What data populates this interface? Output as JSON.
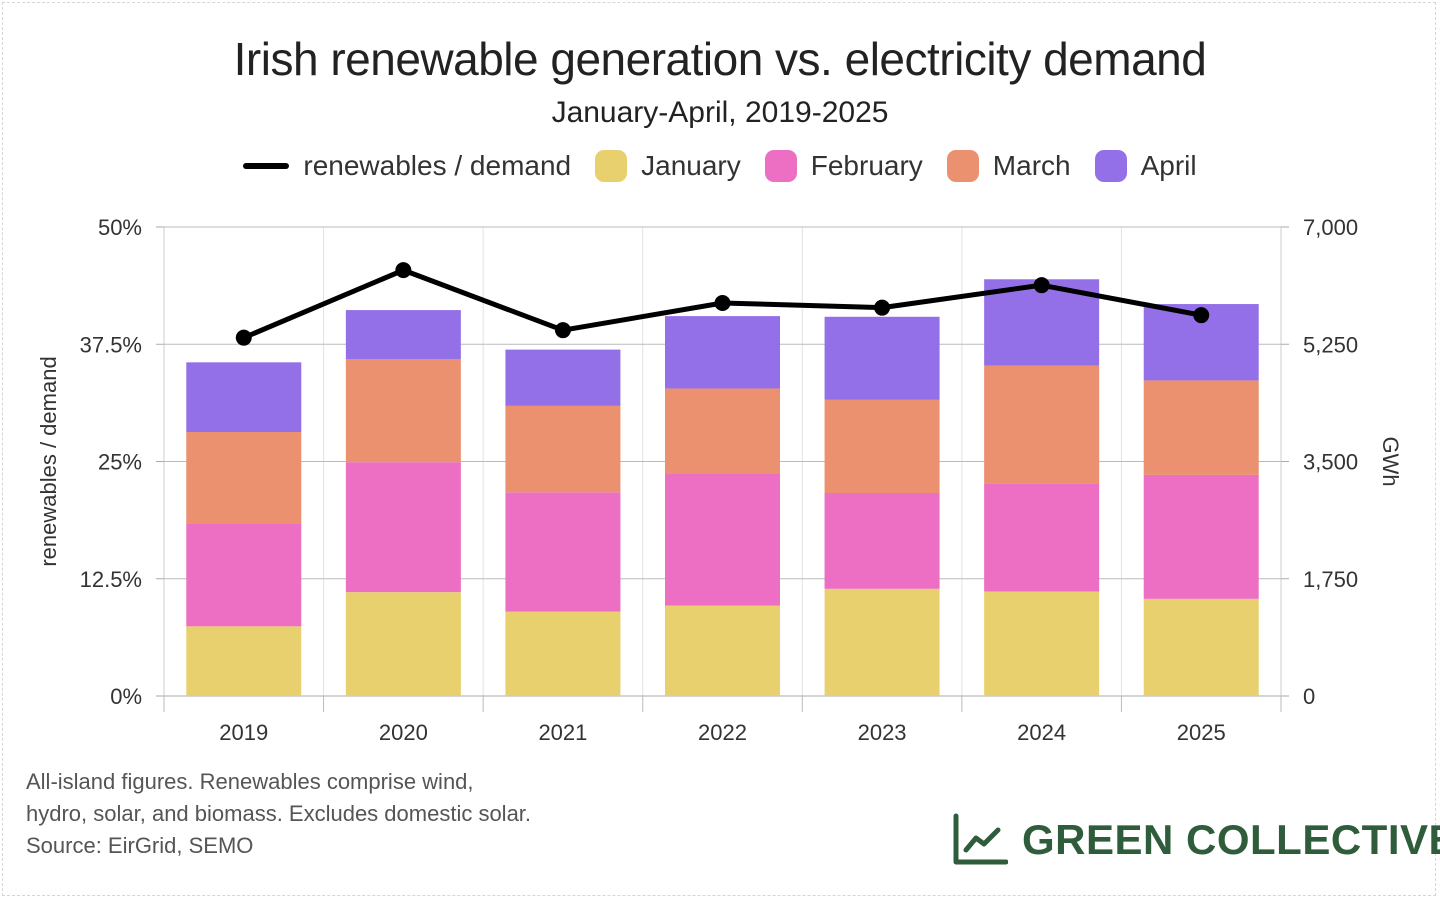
{
  "title": "Irish renewable generation vs. electricity demand",
  "subtitle": "January-April, 2019-2025",
  "legend": {
    "line_label": "renewables / demand",
    "months": [
      "January",
      "February",
      "March",
      "April"
    ]
  },
  "colors": {
    "january": "#e8d06e",
    "february": "#ec6fc4",
    "march": "#eb9170",
    "april": "#9470e8",
    "line": "#000000",
    "logo": "#2f5c3b"
  },
  "chart_data": {
    "type": "bar",
    "stacked": true,
    "categories": [
      "2019",
      "2020",
      "2021",
      "2022",
      "2023",
      "2024",
      "2025"
    ],
    "series": [
      {
        "name": "January",
        "axis": "right",
        "values": [
          1040,
          1550,
          1260,
          1350,
          1600,
          1560,
          1450
        ]
      },
      {
        "name": "February",
        "axis": "right",
        "values": [
          1540,
          1940,
          1780,
          1970,
          1430,
          1610,
          1850
        ]
      },
      {
        "name": "March",
        "axis": "right",
        "values": [
          1360,
          1540,
          1290,
          1270,
          1390,
          1760,
          1410
        ]
      },
      {
        "name": "April",
        "axis": "right",
        "values": [
          1040,
          730,
          840,
          1080,
          1240,
          1290,
          1140
        ]
      },
      {
        "name": "renewables / demand",
        "type": "line",
        "axis": "left",
        "values": [
          0.382,
          0.454,
          0.39,
          0.419,
          0.414,
          0.438,
          0.406
        ]
      }
    ],
    "ylabel": "renewables / demand",
    "y2label": "GWh",
    "ylim": [
      0,
      0.5
    ],
    "y2lim": [
      0,
      7000
    ],
    "yticks": [
      "0%",
      "12.5%",
      "25%",
      "37.5%",
      "50%"
    ],
    "y2ticks": [
      "0",
      "1,750",
      "3,500",
      "5,250",
      "7,000"
    ],
    "grid": true,
    "legend_position": "top"
  },
  "notes": [
    "All-island figures. Renewables comprise wind,",
    "hydro, solar, and biomass. Excludes domestic solar.",
    "Source: EirGrid, SEMO"
  ],
  "logo": {
    "text": "GREEN COLLECTIVE",
    "icon": "line-chart-icon"
  }
}
